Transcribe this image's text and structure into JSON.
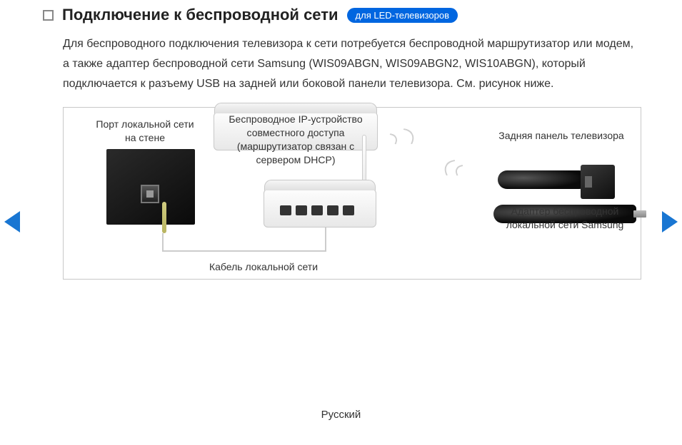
{
  "header": {
    "title": "Подключение к беспроводной сети",
    "badge": "для LED-телевизоров"
  },
  "description": "Для беспроводного подключения телевизора к сети потребуется беспроводной маршрутизатор или модем, а также адаптер беспроводной сети Samsung (WIS09ABGN, WIS09ABGN2, WIS10ABGN), который подключается к разъему USB на задней или боковой панели телевизора. См. рисунок ниже.",
  "diagram": {
    "wall_port_label": "Порт локальной сети на стене",
    "router_label": "Беспроводное IP-устройство совместного доступа (маршрутизатор связан с сервером DHCP)",
    "tv_panel_label": "Задняя панель телевизора",
    "adapter_label": "Адаптер беспроводной локальной сети Samsung",
    "cable_label": "Кабель локальной сети"
  },
  "footer": {
    "language": "Русский"
  },
  "colors": {
    "badge_bg": "#0066e0",
    "arrow": "#1976d2",
    "border": "#c8c8c8",
    "text": "#333333"
  }
}
